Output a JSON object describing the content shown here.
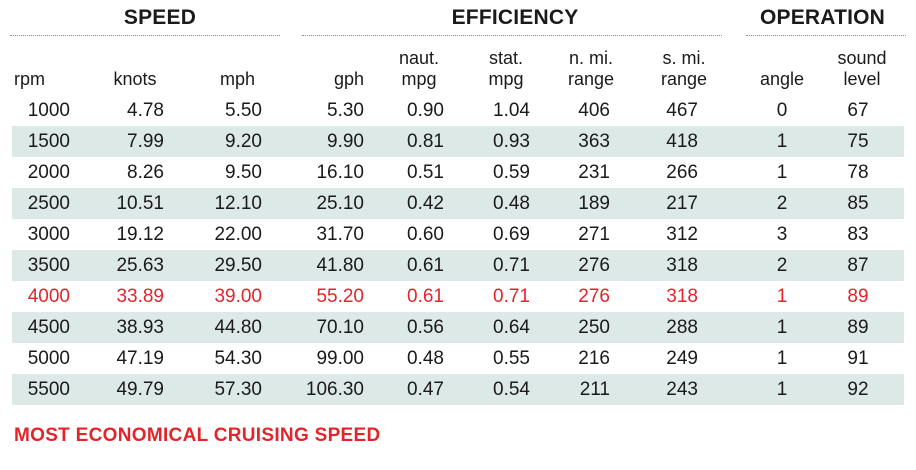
{
  "groups": {
    "speed": "SPEED",
    "efficiency": "EFFICIENCY",
    "operation": "OPERATION"
  },
  "columns": [
    {
      "key": "rpm",
      "lines": [
        "rpm"
      ]
    },
    {
      "key": "knots",
      "lines": [
        "knots"
      ]
    },
    {
      "key": "mph",
      "lines": [
        "mph"
      ]
    },
    {
      "key": "gph",
      "lines": [
        "gph"
      ]
    },
    {
      "key": "naut_mpg",
      "lines": [
        "naut.",
        "mpg"
      ]
    },
    {
      "key": "stat_mpg",
      "lines": [
        "stat.",
        "mpg"
      ]
    },
    {
      "key": "n_mi_range",
      "lines": [
        "n. mi.",
        "range"
      ]
    },
    {
      "key": "s_mi_range",
      "lines": [
        "s. mi.",
        "range"
      ]
    },
    {
      "key": "angle",
      "lines": [
        "angle"
      ]
    },
    {
      "key": "sound_level",
      "lines": [
        "sound",
        "level"
      ]
    }
  ],
  "rows": [
    [
      "1000",
      "4.78",
      "5.50",
      "5.30",
      "0.90",
      "1.04",
      "406",
      "467",
      "0",
      "67"
    ],
    [
      "1500",
      "7.99",
      "9.20",
      "9.90",
      "0.81",
      "0.93",
      "363",
      "418",
      "1",
      "75"
    ],
    [
      "2000",
      "8.26",
      "9.50",
      "16.10",
      "0.51",
      "0.59",
      "231",
      "266",
      "1",
      "78"
    ],
    [
      "2500",
      "10.51",
      "12.10",
      "25.10",
      "0.42",
      "0.48",
      "189",
      "217",
      "2",
      "85"
    ],
    [
      "3000",
      "19.12",
      "22.00",
      "31.70",
      "0.60",
      "0.69",
      "271",
      "312",
      "3",
      "83"
    ],
    [
      "3500",
      "25.63",
      "29.50",
      "41.80",
      "0.61",
      "0.71",
      "276",
      "318",
      "2",
      "87"
    ],
    [
      "4000",
      "33.89",
      "39.00",
      "55.20",
      "0.61",
      "0.71",
      "276",
      "318",
      "1",
      "89"
    ],
    [
      "4500",
      "38.93",
      "44.80",
      "70.10",
      "0.56",
      "0.64",
      "250",
      "288",
      "1",
      "89"
    ],
    [
      "5000",
      "47.19",
      "54.30",
      "99.00",
      "0.48",
      "0.55",
      "216",
      "249",
      "1",
      "91"
    ],
    [
      "5500",
      "49.79",
      "57.30",
      "106.30",
      "0.47",
      "0.54",
      "211",
      "243",
      "1",
      "92"
    ]
  ],
  "highlight_rpm": "4000",
  "colors": {
    "highlight": "#e3252b",
    "shade": "#dde9e7"
  },
  "footer": "MOST ECONOMICAL CRUISING SPEED"
}
